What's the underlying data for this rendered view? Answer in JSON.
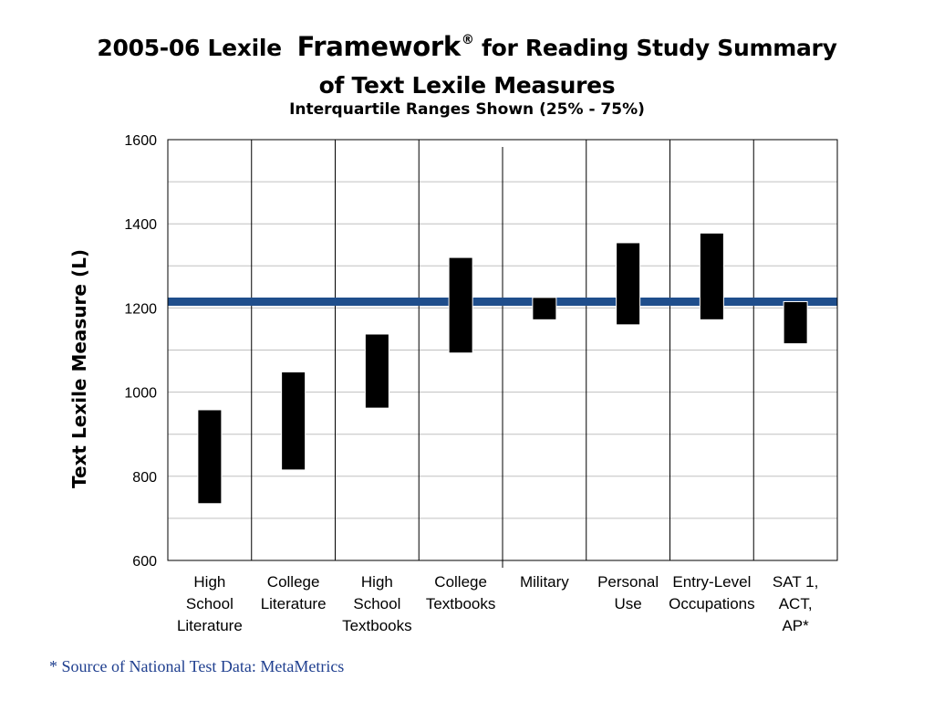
{
  "title": {
    "prefix": "2005-06 Lexile",
    "brand": "Framework",
    "reg_mark": "®",
    "suffix": "for Reading Study Summary",
    "line2": "of Text Lexile Measures"
  },
  "subtitle": "Interquartile Ranges Shown (25% - 75%)",
  "footnote": "* Source of National Test Data: MetaMetrics",
  "colors": {
    "bar": "#000000",
    "reference_line": "#1f4e8c",
    "gridline": "#c0c0c0",
    "divider": "#000000"
  },
  "chart_data": {
    "type": "floating-bar",
    "ylabel": "Text Lexile Measure (L)",
    "ylim": [
      600,
      1600
    ],
    "yticks": [
      600,
      800,
      1000,
      1200,
      1400,
      1600
    ],
    "grid_step": 100,
    "reference_line": 1215,
    "categories": [
      [
        "High",
        "School",
        "Literature"
      ],
      [
        "College",
        "Literature"
      ],
      [
        "High",
        "School",
        "Textbooks"
      ],
      [
        "College",
        "Textbooks"
      ],
      [
        "Military"
      ],
      [
        "Personal",
        "Use"
      ],
      [
        "Entry-Level",
        "Occupations"
      ],
      [
        "SAT 1,",
        "ACT,",
        "AP*"
      ]
    ],
    "ranges": [
      [
        735,
        958
      ],
      [
        815,
        1048
      ],
      [
        962,
        1138
      ],
      [
        1093,
        1320
      ],
      [
        1172,
        1225
      ],
      [
        1160,
        1355
      ],
      [
        1172,
        1378
      ],
      [
        1115,
        1215
      ]
    ]
  }
}
